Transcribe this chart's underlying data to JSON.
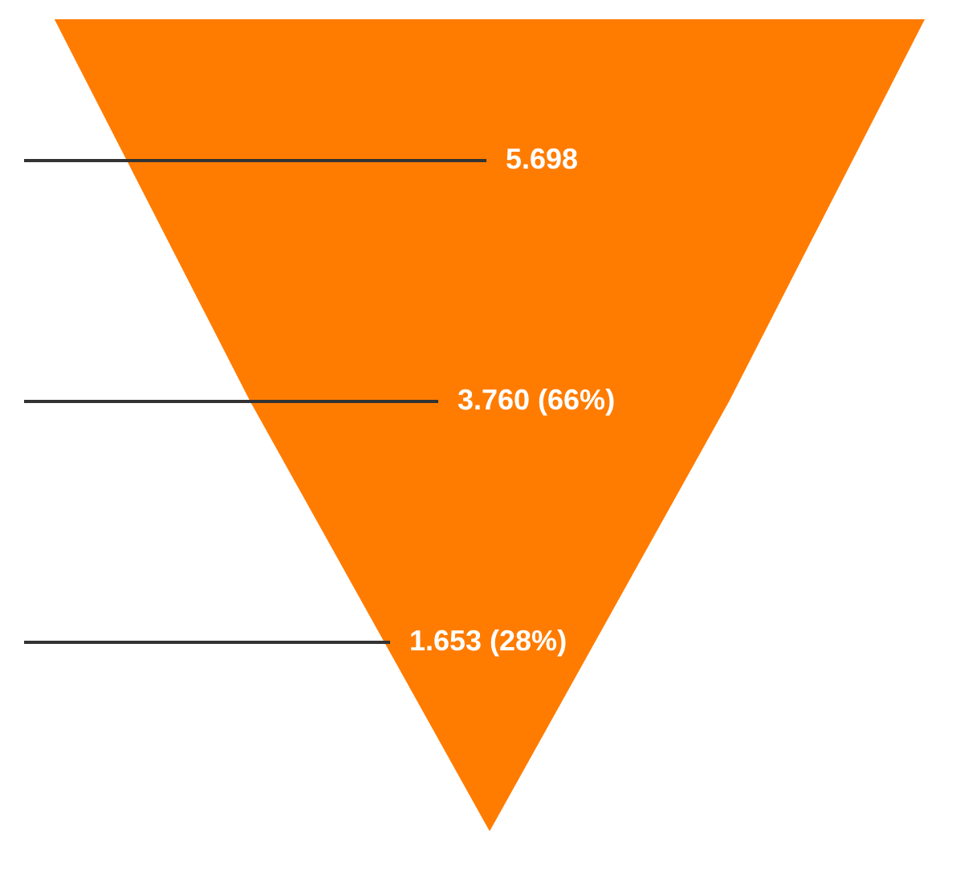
{
  "chart_data": {
    "type": "other",
    "categories": [
      null,
      null,
      null
    ],
    "values": [
      5.698,
      3.76,
      1.653
    ],
    "value_labels": [
      "5.698",
      "3.760 (66%)",
      "1.653 (28%)"
    ],
    "color": "#ff7c00"
  }
}
